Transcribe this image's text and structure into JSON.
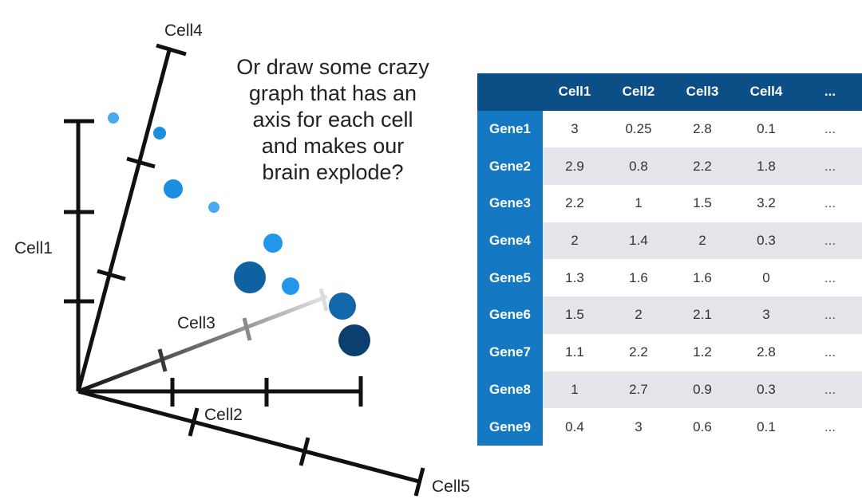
{
  "axes": {
    "cell1": "Cell1",
    "cell2": "Cell2",
    "cell3": "Cell3",
    "cell4": "Cell4",
    "cell5": "Cell5"
  },
  "caption": {
    "lines": [
      "Or draw some crazy",
      "graph that has an",
      "axis for each cell",
      "and makes our",
      "brain explode?"
    ]
  },
  "colors": {
    "header_bg": "#0b4f86",
    "gene_bg": "#1478c2",
    "row_alt": "#e4e5ea",
    "point_light": "#3aa3ee",
    "point_mid": "#1a8fe0",
    "point_dark": "#0f5f9e",
    "point_darkest": "#0b3f6e"
  },
  "table": {
    "columns": [
      "",
      "Cell1",
      "Cell2",
      "Cell3",
      "Cell4",
      "..."
    ],
    "rows": [
      {
        "gene": "Gene1",
        "values": [
          "3",
          "0.25",
          "2.8",
          "0.1",
          "..."
        ]
      },
      {
        "gene": "Gene2",
        "values": [
          "2.9",
          "0.8",
          "2.2",
          "1.8",
          "..."
        ]
      },
      {
        "gene": "Gene3",
        "values": [
          "2.2",
          "1",
          "1.5",
          "3.2",
          "..."
        ]
      },
      {
        "gene": "Gene4",
        "values": [
          "2",
          "1.4",
          "2",
          "0.3",
          "..."
        ]
      },
      {
        "gene": "Gene5",
        "values": [
          "1.3",
          "1.6",
          "1.6",
          "0",
          "..."
        ]
      },
      {
        "gene": "Gene6",
        "values": [
          "1.5",
          "2",
          "2.1",
          "3",
          "..."
        ]
      },
      {
        "gene": "Gene7",
        "values": [
          "1.1",
          "2.2",
          "1.2",
          "2.8",
          "..."
        ]
      },
      {
        "gene": "Gene8",
        "values": [
          "1",
          "2.7",
          "0.9",
          "0.3",
          "..."
        ]
      },
      {
        "gene": "Gene9",
        "values": [
          "0.4",
          "3",
          "0.6",
          "0.1",
          "..."
        ]
      }
    ]
  }
}
